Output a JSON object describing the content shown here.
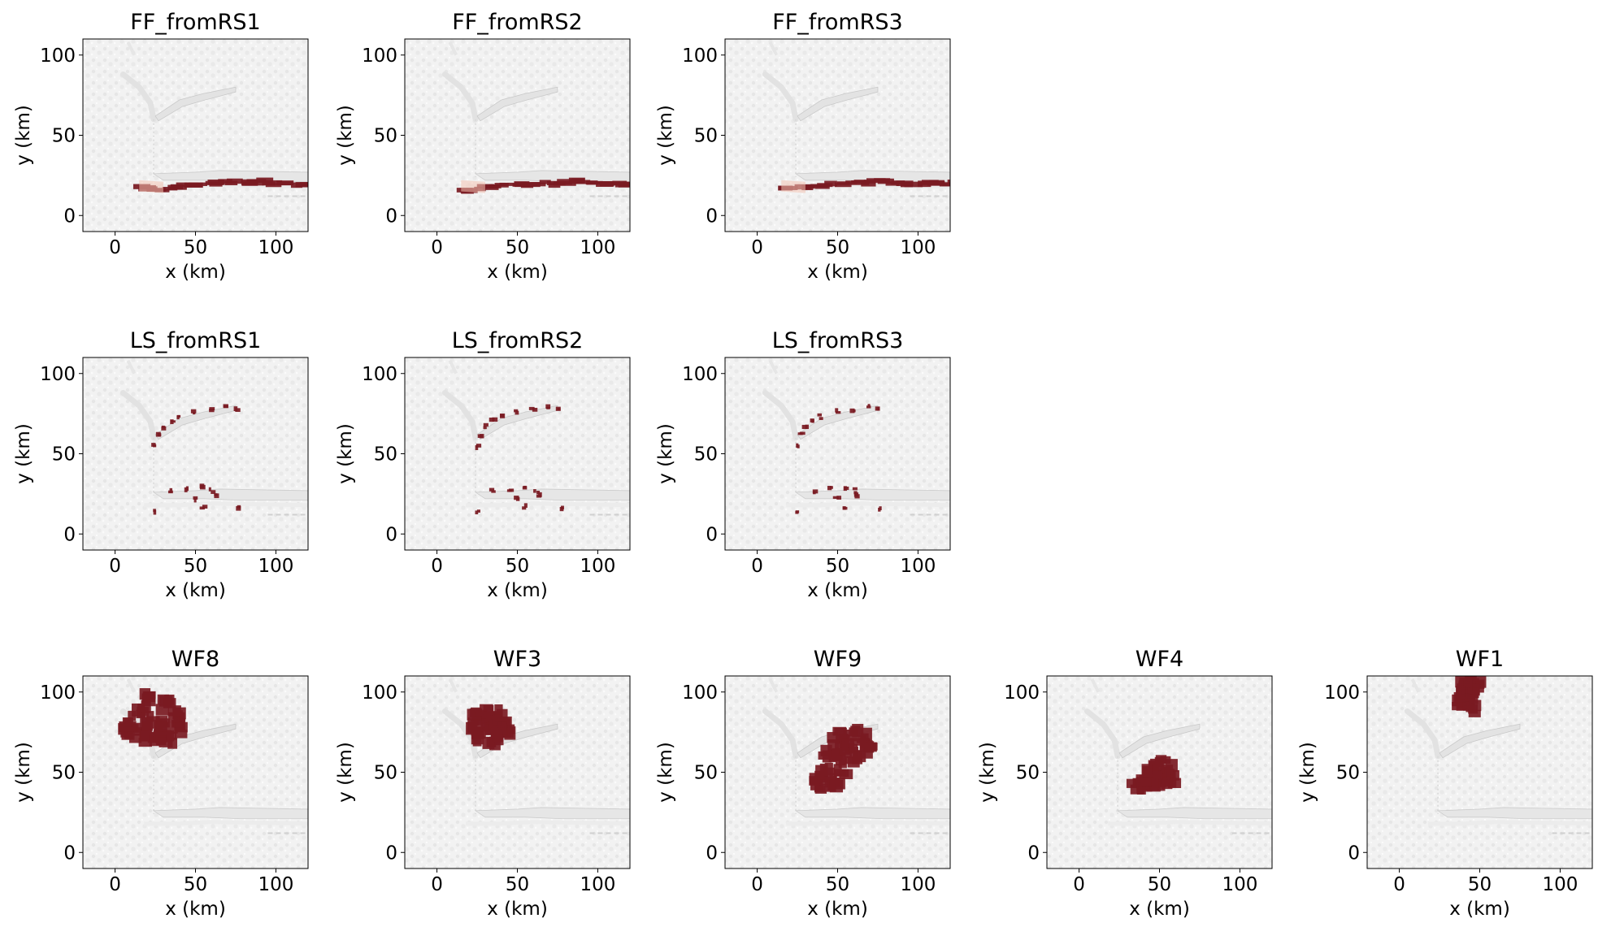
{
  "chart_data": [
    {
      "type": "map",
      "title": "FF_fromRS1",
      "xlabel": "x (km)",
      "ylabel": "y (km)",
      "xlim": [
        -20,
        120
      ],
      "ylim": [
        -10,
        110
      ],
      "xticks": [
        0,
        50,
        100
      ],
      "yticks": [
        0,
        50,
        100
      ],
      "hazard": [
        [
          20,
          17
        ],
        [
          30,
          16
        ],
        [
          40,
          18
        ],
        [
          50,
          20
        ],
        [
          60,
          20
        ],
        [
          70,
          21
        ],
        [
          80,
          20
        ],
        [
          90,
          21
        ],
        [
          100,
          20
        ],
        [
          110,
          20
        ],
        [
          120,
          20
        ]
      ]
    },
    {
      "type": "map",
      "title": "FF_fromRS2",
      "xlabel": "x (km)",
      "ylabel": "y (km)",
      "xlim": [
        -20,
        120
      ],
      "ylim": [
        -10,
        110
      ],
      "xticks": [
        0,
        50,
        100
      ],
      "yticks": [
        0,
        50,
        100
      ],
      "hazard": [
        [
          20,
          16
        ],
        [
          30,
          17
        ],
        [
          40,
          19
        ],
        [
          50,
          20
        ],
        [
          60,
          20
        ],
        [
          70,
          20
        ],
        [
          80,
          21
        ],
        [
          90,
          21
        ],
        [
          100,
          20
        ],
        [
          110,
          20
        ],
        [
          120,
          20
        ]
      ]
    },
    {
      "type": "map",
      "title": "FF_fromRS3",
      "xlabel": "x (km)",
      "ylabel": "y (km)",
      "xlim": [
        -20,
        120
      ],
      "ylim": [
        -10,
        110
      ],
      "xticks": [
        0,
        50,
        100
      ],
      "yticks": [
        0,
        50,
        100
      ],
      "hazard": [
        [
          20,
          16
        ],
        [
          30,
          17
        ],
        [
          40,
          19
        ],
        [
          50,
          20
        ],
        [
          60,
          20
        ],
        [
          70,
          21
        ],
        [
          80,
          21
        ],
        [
          90,
          20
        ],
        [
          100,
          20
        ],
        [
          110,
          20
        ],
        [
          120,
          20
        ]
      ]
    },
    {
      "type": "map",
      "title": "LS_fromRS1",
      "xlabel": "x (km)",
      "ylabel": "y (km)",
      "xlim": [
        -20,
        120
      ],
      "ylim": [
        -10,
        110
      ],
      "xticks": [
        0,
        50,
        100
      ],
      "yticks": [
        0,
        50,
        100
      ],
      "hazard": [
        [
          25,
          55
        ],
        [
          27,
          62
        ],
        [
          30,
          67
        ],
        [
          35,
          70
        ],
        [
          40,
          73
        ],
        [
          50,
          76
        ],
        [
          60,
          78
        ],
        [
          70,
          79
        ],
        [
          76,
          78
        ],
        [
          35,
          27
        ],
        [
          45,
          28
        ],
        [
          55,
          29
        ],
        [
          60,
          27
        ],
        [
          62,
          24
        ],
        [
          50,
          22
        ],
        [
          25,
          14
        ],
        [
          55,
          17
        ],
        [
          77,
          16
        ]
      ]
    },
    {
      "type": "map",
      "title": "LS_fromRS2",
      "xlabel": "x (km)",
      "ylabel": "y (km)",
      "xlim": [
        -20,
        120
      ],
      "ylim": [
        -10,
        110
      ],
      "xticks": [
        0,
        50,
        100
      ],
      "yticks": [
        0,
        50,
        100
      ],
      "hazard": [
        [
          25,
          55
        ],
        [
          27,
          62
        ],
        [
          30,
          67
        ],
        [
          35,
          71
        ],
        [
          40,
          73
        ],
        [
          50,
          76
        ],
        [
          60,
          78
        ],
        [
          70,
          79
        ],
        [
          75,
          78
        ],
        [
          35,
          27
        ],
        [
          45,
          28
        ],
        [
          55,
          29
        ],
        [
          62,
          27
        ],
        [
          64,
          24
        ],
        [
          50,
          22
        ],
        [
          25,
          14
        ],
        [
          55,
          17
        ],
        [
          77,
          16
        ]
      ]
    },
    {
      "type": "map",
      "title": "LS_fromRS3",
      "xlabel": "x (km)",
      "ylabel": "y (km)",
      "xlim": [
        -20,
        120
      ],
      "ylim": [
        -10,
        110
      ],
      "xticks": [
        0,
        50,
        100
      ],
      "yticks": [
        0,
        50,
        100
      ],
      "hazard": [
        [
          25,
          55
        ],
        [
          27,
          62
        ],
        [
          30,
          67
        ],
        [
          35,
          70
        ],
        [
          40,
          73
        ],
        [
          50,
          76
        ],
        [
          60,
          78
        ],
        [
          70,
          79
        ],
        [
          76,
          78
        ],
        [
          35,
          27
        ],
        [
          45,
          28
        ],
        [
          55,
          29
        ],
        [
          60,
          27
        ],
        [
          62,
          24
        ],
        [
          50,
          22
        ],
        [
          25,
          14
        ],
        [
          55,
          17
        ],
        [
          77,
          16
        ]
      ]
    },
    {
      "type": "map",
      "title": "WF8",
      "xlabel": "x (km)",
      "ylabel": "y (km)",
      "xlim": [
        -20,
        120
      ],
      "ylim": [
        -10,
        110
      ],
      "xticks": [
        0,
        50,
        100
      ],
      "yticks": [
        0,
        50,
        100
      ],
      "hazard": [
        [
          8,
          77
        ],
        [
          14,
          74
        ],
        [
          20,
          72
        ],
        [
          26,
          70
        ],
        [
          32,
          72
        ],
        [
          38,
          76
        ],
        [
          42,
          82
        ],
        [
          38,
          88
        ],
        [
          30,
          92
        ],
        [
          22,
          95
        ],
        [
          16,
          90
        ],
        [
          10,
          82
        ],
        [
          20,
          82
        ],
        [
          28,
          80
        ]
      ]
    },
    {
      "type": "map",
      "title": "WF3",
      "xlabel": "x (km)",
      "ylabel": "y (km)",
      "xlim": [
        -20,
        120
      ],
      "ylim": [
        -10,
        110
      ],
      "xticks": [
        0,
        50,
        100
      ],
      "yticks": [
        0,
        50,
        100
      ],
      "hazard": [
        [
          25,
          84
        ],
        [
          30,
          86
        ],
        [
          36,
          85
        ],
        [
          41,
          82
        ],
        [
          43,
          77
        ],
        [
          40,
          73
        ],
        [
          35,
          71
        ],
        [
          28,
          74
        ],
        [
          25,
          79
        ],
        [
          32,
          79
        ],
        [
          37,
          78
        ]
      ]
    },
    {
      "type": "map",
      "title": "WF9",
      "xlabel": "x (km)",
      "ylabel": "y (km)",
      "xlim": [
        -20,
        120
      ],
      "ylim": [
        -10,
        110
      ],
      "xticks": [
        0,
        50,
        100
      ],
      "yticks": [
        0,
        50,
        100
      ],
      "hazard": [
        [
          38,
          43
        ],
        [
          42,
          42
        ],
        [
          48,
          45
        ],
        [
          54,
          52
        ],
        [
          62,
          58
        ],
        [
          68,
          64
        ],
        [
          70,
          70
        ],
        [
          62,
          72
        ],
        [
          55,
          72
        ],
        [
          50,
          68
        ],
        [
          45,
          60
        ],
        [
          42,
          52
        ],
        [
          52,
          60
        ],
        [
          58,
          64
        ]
      ]
    },
    {
      "type": "map",
      "title": "WF4",
      "xlabel": "x (km)",
      "ylabel": "y (km)",
      "xlim": [
        -20,
        120
      ],
      "ylim": [
        -10,
        110
      ],
      "xticks": [
        0,
        50,
        100
      ],
      "yticks": [
        0,
        50,
        100
      ],
      "hazard": [
        [
          37,
          43
        ],
        [
          40,
          41
        ],
        [
          45,
          42
        ],
        [
          50,
          45
        ],
        [
          54,
          50
        ],
        [
          57,
          47
        ],
        [
          55,
          52
        ],
        [
          50,
          55
        ],
        [
          46,
          51
        ],
        [
          43,
          46
        ]
      ]
    },
    {
      "type": "map",
      "title": "WF1",
      "xlabel": "x (km)",
      "ylabel": "y (km)",
      "xlim": [
        -20,
        120
      ],
      "ylim": [
        -10,
        110
      ],
      "xticks": [
        0,
        50,
        100
      ],
      "yticks": [
        0,
        50,
        100
      ],
      "hazard": [
        [
          40,
          106
        ],
        [
          44,
          108
        ],
        [
          47,
          104
        ],
        [
          46,
          98
        ],
        [
          46,
          92
        ],
        [
          43,
          90
        ],
        [
          40,
          94
        ],
        [
          39,
          100
        ],
        [
          42,
          102
        ]
      ]
    }
  ]
}
